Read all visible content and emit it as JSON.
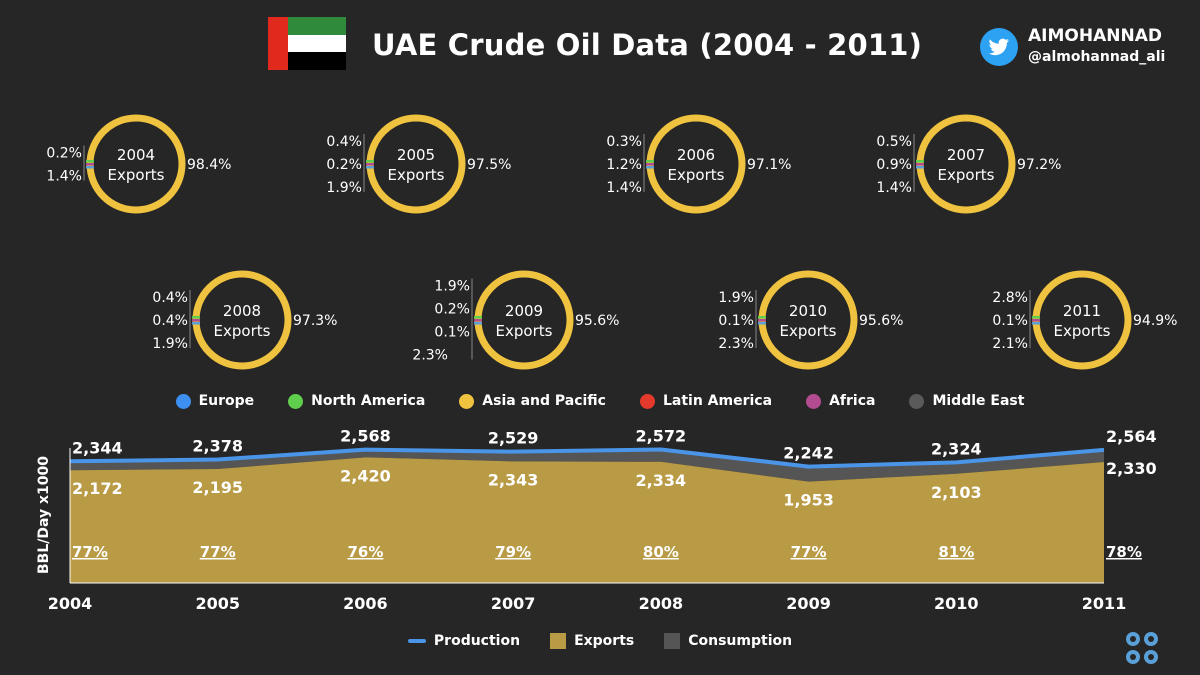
{
  "header": {
    "title": "UAE Crude Oil Data (2004 - 2011)",
    "brand_name": "AIMOHANNAD",
    "brand_handle": "@almohannad_ali"
  },
  "colors": {
    "europe": "#3d8ff2",
    "north_america": "#5fce4c",
    "asia_pacific": "#efc23f",
    "latin_america": "#e53a2b",
    "africa": "#b24b90",
    "middle_east": "#5a5a5a",
    "production": "#4a95e8",
    "exports": "#b99a45",
    "consumption": "#555555",
    "background": "#262626"
  },
  "export_regions_legend": [
    {
      "name": "Europe",
      "color": "#3d8ff2"
    },
    {
      "name": "North America",
      "color": "#5fce4c"
    },
    {
      "name": "Asia and Pacific",
      "color": "#efc23f"
    },
    {
      "name": "Latin America",
      "color": "#e53a2b"
    },
    {
      "name": "Africa",
      "color": "#b24b90"
    },
    {
      "name": "Middle East",
      "color": "#5a5a5a"
    }
  ],
  "chart_data": [
    {
      "type": "pie",
      "charts": [
        {
          "center": "2004\nExports",
          "labels": [
            "0.2%",
            "1.4%",
            "98.4%"
          ]
        },
        {
          "center": "2005\nExports",
          "labels": [
            "0.4%",
            "0.2%",
            "1.9%",
            "97.5%"
          ]
        },
        {
          "center": "2006\nExports",
          "labels": [
            "0.3%",
            "1.2%",
            "1.4%",
            "97.1%"
          ]
        },
        {
          "center": "2007\nExports",
          "labels": [
            "0.5%",
            "0.9%",
            "1.4%",
            "97.2%"
          ]
        },
        {
          "center": "2008\nExports",
          "labels": [
            "0.4%",
            "0.4%",
            "1.9%",
            "97.3%"
          ]
        },
        {
          "center": "2009\nExports",
          "labels": [
            "1.9%",
            "0.2%",
            "0.1%",
            "2.3%",
            "95.6%"
          ]
        },
        {
          "center": "2010\nExports",
          "labels": [
            "1.9%",
            "0.1%",
            "2.3%",
            "95.6%"
          ]
        },
        {
          "center": "2011\nExports",
          "labels": [
            "2.8%",
            "0.1%",
            "2.1%",
            "94.9%"
          ]
        }
      ]
    },
    {
      "type": "area",
      "x": [
        "2004",
        "2005",
        "2006",
        "2007",
        "2008",
        "2009",
        "2010",
        "2011"
      ],
      "ylabel": "BBL/Day x1000",
      "series": [
        {
          "name": "Production",
          "type": "line",
          "values": [
            2344,
            2378,
            2568,
            2529,
            2572,
            2242,
            2324,
            2564
          ]
        },
        {
          "name": "Exports",
          "type": "area",
          "values": [
            2172,
            2195,
            2420,
            2343,
            2334,
            1953,
            2103,
            2330
          ]
        },
        {
          "name": "Consumption",
          "type": "area"
        }
      ],
      "export_share_labels": [
        "77%",
        "77%",
        "76%",
        "79%",
        "80%",
        "77%",
        "81%",
        "78%"
      ],
      "legend": [
        "Production",
        "Exports",
        "Consumption"
      ]
    }
  ]
}
